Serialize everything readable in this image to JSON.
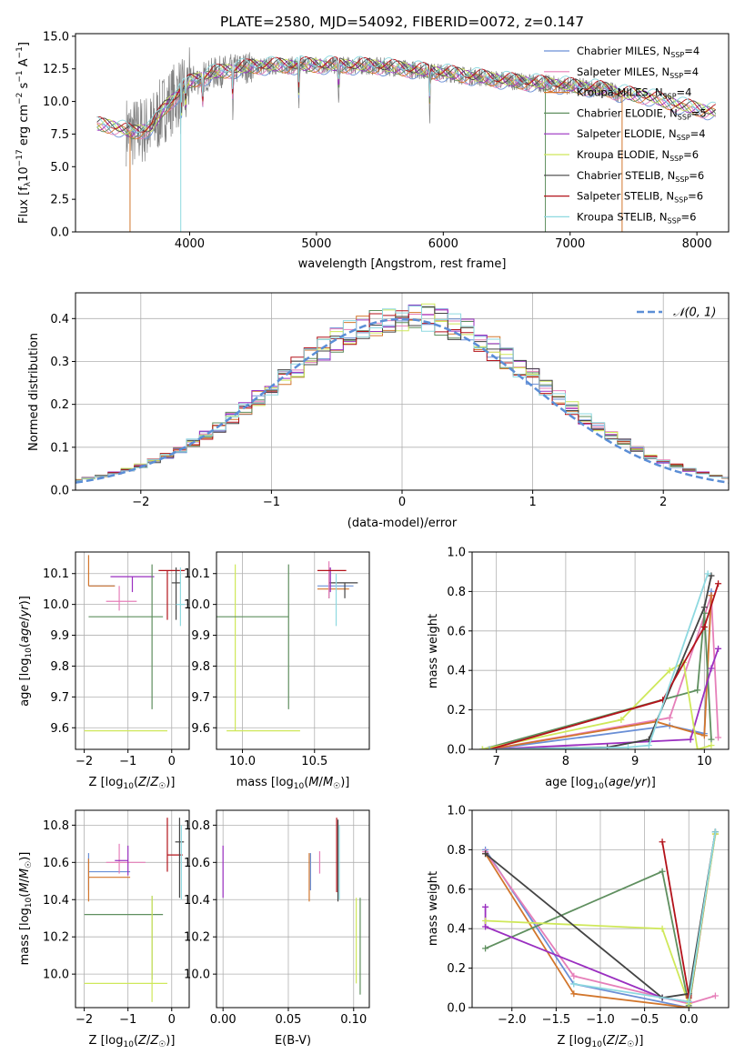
{
  "figure_title": "PLATE=2580, MJD=54092, FIBERID=0072, z=0.147",
  "models": [
    {
      "name": "Chabrier MILES",
      "nssp": "4",
      "color": "#6a8fd6"
    },
    {
      "name": "Salpeter MILES",
      "nssp": "4",
      "color": "#e67fb9"
    },
    {
      "name": "Kroupa MILES",
      "nssp": "4",
      "color": "#d2762c"
    },
    {
      "name": "Chabrier ELODIE",
      "nssp": "5",
      "color": "#5f8f5f"
    },
    {
      "name": "Salpeter ELODIE",
      "nssp": "4",
      "color": "#9a2fc0"
    },
    {
      "name": "Kroupa ELODIE",
      "nssp": "6",
      "color": "#cfe85a"
    },
    {
      "name": "Chabrier STELIB",
      "nssp": "6",
      "color": "#444444"
    },
    {
      "name": "Salpeter STELIB",
      "nssp": "6",
      "color": "#b3121a"
    },
    {
      "name": "Kroupa STELIB",
      "nssp": "6",
      "color": "#8ed9e0"
    }
  ],
  "chart_data": [
    {
      "id": "spectrum",
      "type": "line",
      "title": "PLATE=2580, MJD=54092, FIBERID=0072, z=0.147",
      "xlabel": "wavelength [Angstrom, rest frame]",
      "ylabel": "Flux [f_λ 10^-17 erg cm^-2 s^-1 A^-1]",
      "xlim": [
        3100,
        8250
      ],
      "ylim": [
        0,
        15.2
      ],
      "xticks": [
        "4000",
        "5000",
        "6000",
        "7000",
        "8000"
      ],
      "yticks": [
        "0.0",
        "2.5",
        "5.0",
        "7.5",
        "10.0",
        "12.5",
        "15.0"
      ],
      "data_color": "#808080",
      "model_colors": [
        "#6a8fd6",
        "#e67fb9",
        "#d2762c",
        "#5f8f5f",
        "#9a2fc0",
        "#cfe85a",
        "#444444",
        "#b3121a",
        "#8ed9e0"
      ],
      "continuum": [
        [
          3270,
          8.2
        ],
        [
          3400,
          8.1
        ],
        [
          3550,
          7.6
        ],
        [
          3700,
          8.0
        ],
        [
          3800,
          9.5
        ],
        [
          3900,
          10.5
        ],
        [
          4000,
          11.5
        ],
        [
          4200,
          12.2
        ],
        [
          4500,
          12.7
        ],
        [
          5000,
          12.8
        ],
        [
          5500,
          12.7
        ],
        [
          6000,
          12.2
        ],
        [
          6500,
          11.6
        ],
        [
          7000,
          11.2
        ],
        [
          7300,
          10.9
        ],
        [
          7400,
          10.6
        ],
        [
          7600,
          10.4
        ],
        [
          7900,
          9.6
        ],
        [
          8150,
          9.2
        ]
      ],
      "model_range": [
        3270,
        8150
      ],
      "data_range": [
        3500,
        7400
      ],
      "absorption_lines": [
        3934,
        3969,
        4102,
        4340,
        4861,
        5175,
        5893
      ]
    },
    {
      "id": "residual-histogram",
      "type": "bar",
      "xlabel": "(data-model)/error",
      "ylabel": "Normed distribution",
      "xlim": [
        -2.5,
        2.5
      ],
      "ylim": [
        0,
        0.46
      ],
      "xticks": [
        "−2",
        "−1",
        "0",
        "1",
        "2"
      ],
      "yticks": [
        "0.0",
        "0.1",
        "0.2",
        "0.3",
        "0.4"
      ],
      "legend": "N(0,1)",
      "legend_position": "top-right",
      "gaussian_color": "#5b8ed6",
      "bin_width": 0.1
    },
    {
      "id": "age-vs-metallicity",
      "type": "scatter",
      "xlabel": "Z [log10(Z/Z☉)]",
      "ylabel": "age [log10(age/yr)]",
      "xlim": [
        -2.2,
        0.4
      ],
      "ylim": [
        9.53,
        10.17
      ],
      "xticks": [
        "−2",
        "−1",
        "0"
      ],
      "yticks": [
        "9.6",
        "9.7",
        "9.8",
        "9.9",
        "10.0",
        "10.1"
      ],
      "points": [
        {
          "x": -1.9,
          "xerr": [
            0.0,
            0.6
          ],
          "y": 10.06,
          "yerr": [
            0.0,
            0.0
          ],
          "color": "#6a8fd6"
        },
        {
          "x": -1.9,
          "xerr": [
            0.0,
            0.6
          ],
          "y": 10.06,
          "yerr": [
            0.0,
            0.1
          ],
          "color": "#d2762c"
        },
        {
          "x": -1.2,
          "xerr": [
            0.3,
            0.4
          ],
          "y": 10.01,
          "yerr": [
            0.03,
            0.05
          ],
          "color": "#e67fb9"
        },
        {
          "x": -0.9,
          "xerr": [
            0.5,
            0.5
          ],
          "y": 10.09,
          "yerr": [
            0.05,
            0.0
          ],
          "color": "#9a2fc0"
        },
        {
          "x": -0.9,
          "xerr": [
            0.0,
            0.0
          ],
          "y": 10.06,
          "yerr": [
            0.0,
            0.0
          ],
          "color": "#444444"
        },
        {
          "x": -0.45,
          "xerr": [
            1.45,
            0.25
          ],
          "y": 9.96,
          "yerr": [
            0.3,
            0.17
          ],
          "color": "#5f8f5f"
        },
        {
          "x": -0.45,
          "xerr": [
            1.55,
            0.35
          ],
          "y": 9.59,
          "yerr": [
            0.0,
            0.0
          ],
          "color": "#cfe85a"
        },
        {
          "x": -0.1,
          "xerr": [
            0.2,
            0.4
          ],
          "y": 10.11,
          "yerr": [
            0.16,
            0.0
          ],
          "color": "#b3121a"
        },
        {
          "x": 0.1,
          "xerr": [
            0.1,
            0.1
          ],
          "y": 10.07,
          "yerr": [
            0.12,
            0.05
          ],
          "color": "#444444"
        },
        {
          "x": 0.2,
          "xerr": [
            0.1,
            0.1
          ],
          "y": 10.0,
          "yerr": [
            0.07,
            0.12
          ],
          "color": "#8ed9e0"
        }
      ]
    },
    {
      "id": "age-vs-mass",
      "type": "scatter",
      "xlabel": "mass [log10(M/M☉)]",
      "ylabel": "",
      "xlim": [
        9.82,
        10.88
      ],
      "ylim": [
        9.53,
        10.17
      ],
      "xticks": [
        "10.0",
        "10.5"
      ],
      "yticks": [
        "9.6",
        "9.7",
        "9.8",
        "9.9",
        "10.0",
        "10.1"
      ],
      "points": [
        {
          "x": 9.95,
          "xerr": [
            0.06,
            0.45
          ],
          "y": 9.59,
          "yerr": [
            0.0,
            0.54
          ],
          "color": "#cfe85a"
        },
        {
          "x": 10.32,
          "xerr": [
            0.55,
            0.0
          ],
          "y": 9.96,
          "yerr": [
            0.3,
            0.17
          ],
          "color": "#5f8f5f"
        },
        {
          "x": 10.52,
          "xerr": [
            0.0,
            0.25
          ],
          "y": 10.06,
          "yerr": [
            0.0,
            0.0
          ],
          "color": "#6a8fd6"
        },
        {
          "x": 10.52,
          "xerr": [
            0.0,
            0.22
          ],
          "y": 10.05,
          "yerr": [
            0.0,
            0.0
          ],
          "color": "#d2762c"
        },
        {
          "x": 10.6,
          "xerr": [
            0.0,
            0.2
          ],
          "y": 10.07,
          "yerr": [
            0.05,
            0.05
          ],
          "color": "#444444"
        },
        {
          "x": 10.6,
          "xerr": [
            0.0,
            0.0
          ],
          "y": 10.08,
          "yerr": [
            0.06,
            0.06
          ],
          "color": "#e67fb9"
        },
        {
          "x": 10.61,
          "xerr": [
            0.0,
            0.0
          ],
          "y": 10.09,
          "yerr": [
            0.05,
            0.03
          ],
          "color": "#9a2fc0"
        },
        {
          "x": 10.64,
          "xerr": [
            0.12,
            0.08
          ],
          "y": 10.11,
          "yerr": [
            0.0,
            0.0
          ],
          "color": "#b3121a"
        },
        {
          "x": 10.65,
          "xerr": [
            0.0,
            0.0
          ],
          "y": 10.0,
          "yerr": [
            0.07,
            0.1
          ],
          "color": "#8ed9e0"
        },
        {
          "x": 10.71,
          "xerr": [
            0.0,
            0.0
          ],
          "y": 10.07,
          "yerr": [
            0.05,
            0.0
          ],
          "color": "#444444"
        }
      ]
    },
    {
      "id": "weight-vs-age",
      "type": "line",
      "xlabel": "age [log10(age/yr)]",
      "ylabel": "mass weight",
      "xlim": [
        6.65,
        10.35
      ],
      "ylim": [
        0,
        1.0
      ],
      "xticks": [
        "7",
        "8",
        "9",
        "10"
      ],
      "yticks": [
        "0.0",
        "0.2",
        "0.4",
        "0.6",
        "0.8",
        "1.0"
      ],
      "series": [
        {
          "color": "#6a8fd6",
          "x": [
            6.9,
            9.5,
            10.0,
            10.1
          ],
          "y": [
            0.0,
            0.12,
            0.08,
            0.8
          ]
        },
        {
          "color": "#e67fb9",
          "x": [
            6.9,
            9.5,
            10.1,
            10.2
          ],
          "y": [
            0.0,
            0.16,
            0.78,
            0.06
          ]
        },
        {
          "color": "#d2762c",
          "x": [
            6.9,
            9.3,
            10.0,
            10.1
          ],
          "y": [
            0.0,
            0.14,
            0.07,
            0.78
          ]
        },
        {
          "color": "#5f8f5f",
          "x": [
            6.8,
            9.9,
            10.0,
            10.1
          ],
          "y": [
            0.0,
            0.3,
            0.69,
            0.05
          ]
        },
        {
          "color": "#9a2fc0",
          "x": [
            6.9,
            9.8,
            10.1,
            10.2
          ],
          "y": [
            0.0,
            0.05,
            0.41,
            0.51
          ]
        },
        {
          "color": "#cfe85a",
          "x": [
            6.8,
            8.8,
            9.5,
            9.7,
            9.9,
            10.1
          ],
          "y": [
            0.0,
            0.15,
            0.4,
            0.44,
            0.0,
            0.02
          ]
        },
        {
          "color": "#444444",
          "x": [
            6.9,
            8.6,
            9.2,
            10.0,
            10.1
          ],
          "y": [
            0.0,
            0.01,
            0.05,
            0.72,
            0.88
          ]
        },
        {
          "color": "#b3121a",
          "x": [
            6.9,
            9.4,
            10.0,
            10.2
          ],
          "y": [
            0.0,
            0.25,
            0.62,
            0.84
          ]
        },
        {
          "color": "#8ed9e0",
          "x": [
            6.9,
            8.9,
            9.2,
            10.05
          ],
          "y": [
            0.0,
            0.01,
            0.02,
            0.89
          ]
        }
      ]
    },
    {
      "id": "mass-vs-metallicity",
      "type": "scatter",
      "xlabel": "Z [log10(Z/Z☉)]",
      "ylabel": "mass [log10(M/M☉)]",
      "xlim": [
        -2.2,
        0.4
      ],
      "ylim": [
        9.82,
        10.88
      ],
      "xticks": [
        "−2",
        "−1",
        "0"
      ],
      "yticks": [
        "10.0",
        "10.2",
        "10.4",
        "10.6",
        "10.8"
      ],
      "points": [
        {
          "x": -1.9,
          "xerr": [
            0.0,
            0.95
          ],
          "y": 10.55,
          "yerr": [
            0.1,
            0.1
          ],
          "color": "#6a8fd6"
        },
        {
          "x": -1.9,
          "xerr": [
            0.0,
            0.95
          ],
          "y": 10.52,
          "yerr": [
            0.13,
            0.1
          ],
          "color": "#d2762c"
        },
        {
          "x": -1.2,
          "xerr": [
            0.3,
            0.6
          ],
          "y": 10.6,
          "yerr": [
            0.06,
            0.1
          ],
          "color": "#e67fb9"
        },
        {
          "x": -1.0,
          "xerr": [
            0.3,
            0.0
          ],
          "y": 10.61,
          "yerr": [
            0.08,
            0.08
          ],
          "color": "#9a2fc0"
        },
        {
          "x": -0.45,
          "xerr": [
            1.55,
            0.25
          ],
          "y": 10.32,
          "yerr": [
            0.35,
            0.1
          ],
          "color": "#5f8f5f"
        },
        {
          "x": -0.45,
          "xerr": [
            1.55,
            0.35
          ],
          "y": 9.95,
          "yerr": [
            0.1,
            0.47
          ],
          "color": "#cfe85a"
        },
        {
          "x": -0.1,
          "xerr": [
            0.0,
            0.35
          ],
          "y": 10.64,
          "yerr": [
            0.09,
            0.2
          ],
          "color": "#b3121a"
        },
        {
          "x": 0.18,
          "xerr": [
            0.1,
            0.1
          ],
          "y": 10.71,
          "yerr": [
            0.3,
            0.13
          ],
          "color": "#444444"
        },
        {
          "x": 0.22,
          "xerr": [
            0.0,
            0.0
          ],
          "y": 10.6,
          "yerr": [
            0.2,
            0.2
          ],
          "color": "#8ed9e0"
        }
      ]
    },
    {
      "id": "mass-vs-extinction",
      "type": "scatter",
      "xlabel": "E(B-V)",
      "ylabel": "",
      "xlim": [
        -0.005,
        0.112
      ],
      "ylim": [
        9.82,
        10.88
      ],
      "xticks": [
        "0.00",
        "0.05",
        "0.10"
      ],
      "yticks": [
        "10.0",
        "10.2",
        "10.4",
        "10.6",
        "10.8"
      ],
      "points": [
        {
          "x": 0.0,
          "xerr": [
            0.0,
            0.0
          ],
          "y": 10.55,
          "yerr": [
            0.14,
            0.14
          ],
          "color": "#9a2fc0"
        },
        {
          "x": 0.066,
          "xerr": [
            0.0,
            0.0
          ],
          "y": 10.52,
          "yerr": [
            0.13,
            0.13
          ],
          "color": "#d2762c"
        },
        {
          "x": 0.067,
          "xerr": [
            0.0,
            0.0
          ],
          "y": 10.55,
          "yerr": [
            0.1,
            0.1
          ],
          "color": "#6a8fd6"
        },
        {
          "x": 0.074,
          "xerr": [
            0.0,
            0.0
          ],
          "y": 10.6,
          "yerr": [
            0.06,
            0.06
          ],
          "color": "#e67fb9"
        },
        {
          "x": 0.087,
          "xerr": [
            0.0,
            0.0
          ],
          "y": 10.64,
          "yerr": [
            0.2,
            0.2
          ],
          "color": "#b3121a"
        },
        {
          "x": 0.088,
          "xerr": [
            0.0,
            0.0
          ],
          "y": 10.61,
          "yerr": [
            0.22,
            0.22
          ],
          "color": "#444444"
        },
        {
          "x": 0.089,
          "xerr": [
            0.0,
            0.0
          ],
          "y": 10.6,
          "yerr": [
            0.2,
            0.2
          ],
          "color": "#8ed9e0"
        },
        {
          "x": 0.102,
          "xerr": [
            0.0,
            0.0
          ],
          "y": 10.18,
          "yerr": [
            0.23,
            0.23
          ],
          "color": "#cfe85a"
        },
        {
          "x": 0.105,
          "xerr": [
            0.0,
            0.0
          ],
          "y": 10.15,
          "yerr": [
            0.26,
            0.26
          ],
          "color": "#5f8f5f"
        }
      ]
    },
    {
      "id": "weight-vs-metallicity",
      "type": "line",
      "xlabel": "Z [log10(Z/Z☉)]",
      "ylabel": "mass weight",
      "xlim": [
        -2.45,
        0.45
      ],
      "ylim": [
        0,
        1.0
      ],
      "xticks": [
        "−2.0",
        "−1.5",
        "−1.0",
        "−0.5",
        "0.0"
      ],
      "yticks": [
        "0.0",
        "0.2",
        "0.4",
        "0.6",
        "0.8",
        "1.0"
      ],
      "series": [
        {
          "color": "#6a8fd6",
          "x": [
            -2.3,
            -1.3,
            0.0,
            0.3
          ],
          "y": [
            0.8,
            0.12,
            0.0,
            0.89
          ]
        },
        {
          "color": "#e67fb9",
          "x": [
            -2.3,
            -1.3,
            0.0,
            0.3
          ],
          "y": [
            0.79,
            0.16,
            0.02,
            0.06
          ]
        },
        {
          "color": "#d2762c",
          "x": [
            -2.3,
            -1.3,
            0.0,
            0.3
          ],
          "y": [
            0.78,
            0.07,
            0.0,
            0.88
          ]
        },
        {
          "color": "#5f8f5f",
          "x": [
            -2.3,
            -0.3,
            0.0,
            0.3
          ],
          "y": [
            0.3,
            0.69,
            0.01,
            0.89
          ]
        },
        {
          "color": "#9a2fc0",
          "x": [
            -2.3,
            -2.3,
            -0.3,
            0.0
          ],
          "y": [
            0.51,
            0.41,
            0.05,
            0.03
          ]
        },
        {
          "color": "#cfe85a",
          "x": [
            -2.3,
            -0.3,
            0.0,
            0.3
          ],
          "y": [
            0.44,
            0.4,
            0.02,
            0.88
          ]
        },
        {
          "color": "#444444",
          "x": [
            -2.3,
            -0.3,
            0.0,
            0.3
          ],
          "y": [
            0.78,
            0.05,
            0.07,
            0.89
          ]
        },
        {
          "color": "#b3121a",
          "x": [
            -0.3,
            0.0,
            0.0
          ],
          "y": [
            0.84,
            0.06,
            0.05
          ]
        },
        {
          "color": "#8ed9e0",
          "x": [
            -1.3,
            0.0,
            0.3
          ],
          "y": [
            0.12,
            0.03,
            0.89
          ]
        }
      ]
    }
  ]
}
